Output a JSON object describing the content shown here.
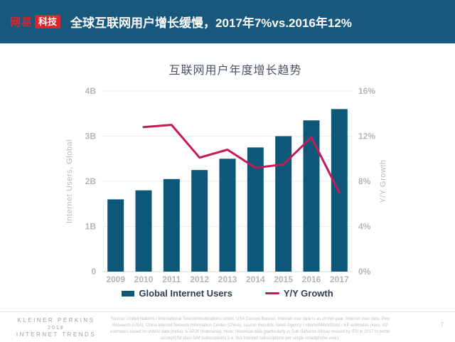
{
  "header": {
    "logo": {
      "brand": "网易",
      "sub": "科技"
    },
    "title": "全球互联网用户增长缓慢，2017年7%vs.2016年12%"
  },
  "chart_data": {
    "type": "bar+line",
    "title": "互联网用户年度增长趋势",
    "categories": [
      "2009",
      "2010",
      "2011",
      "2012",
      "2013",
      "2014",
      "2015",
      "2016",
      "2017"
    ],
    "series": [
      {
        "name": "Global Internet Users",
        "type": "bar",
        "axis": "left",
        "unit": "B",
        "color": "#0d5878",
        "values": [
          1.6,
          1.8,
          2.05,
          2.25,
          2.5,
          2.75,
          3.0,
          3.35,
          3.6
        ]
      },
      {
        "name": "Y/Y Growth",
        "type": "line",
        "axis": "right",
        "unit": "%",
        "color": "#c41a58",
        "values": [
          null,
          12.8,
          13.0,
          10.1,
          10.8,
          9.2,
          9.5,
          11.9,
          7.0
        ]
      }
    ],
    "left_axis": {
      "label": "Internet Users, Global",
      "range": [
        0,
        4
      ],
      "ticks": [
        "4B",
        "3B",
        "2B",
        "1B",
        "0"
      ]
    },
    "right_axis": {
      "label": "Y/Y Growth",
      "range": [
        0,
        16
      ],
      "ticks": [
        "16%",
        "12%",
        "8%",
        "4%",
        "0%"
      ]
    },
    "grid": true,
    "legend_position": "bottom",
    "legend": [
      {
        "label": "Global Internet Users",
        "color": "#0d5878",
        "shape": "rect"
      },
      {
        "label": "Y/Y Growth",
        "color": "#c41a58",
        "shape": "line"
      }
    ]
  },
  "footer": {
    "brand_lines": [
      "KLEINER PERKINS",
      "2018",
      "INTERNET TRENDS"
    ],
    "source": "Source: United Nations / International Telecommunications Union, USA Census Bureau. Internet user data is as of mid-year. Internet user data: Pew Research (USA), China Internet Network Information Center (China), Islamic Republic News Agency / InternetWorldStats / KP estimates (Iran). KP estimates based on IAMAI data (India), & APJII (Indonesia). Note: Historical data (particularly in Sub-Saharan Africa) revised by ITU in 2017 to better account for dual-SIM subscriptions (i.e. two Internet subscriptions per single smartphone user).",
    "page_number": "7"
  },
  "colors": {
    "header_bg": "#17587c",
    "logo_red": "#d9262b",
    "bar_blue": "#0d5878",
    "line_crimson": "#c41a58",
    "axis_gray": "#b2b6ba",
    "title_gray": "#4a545c"
  }
}
